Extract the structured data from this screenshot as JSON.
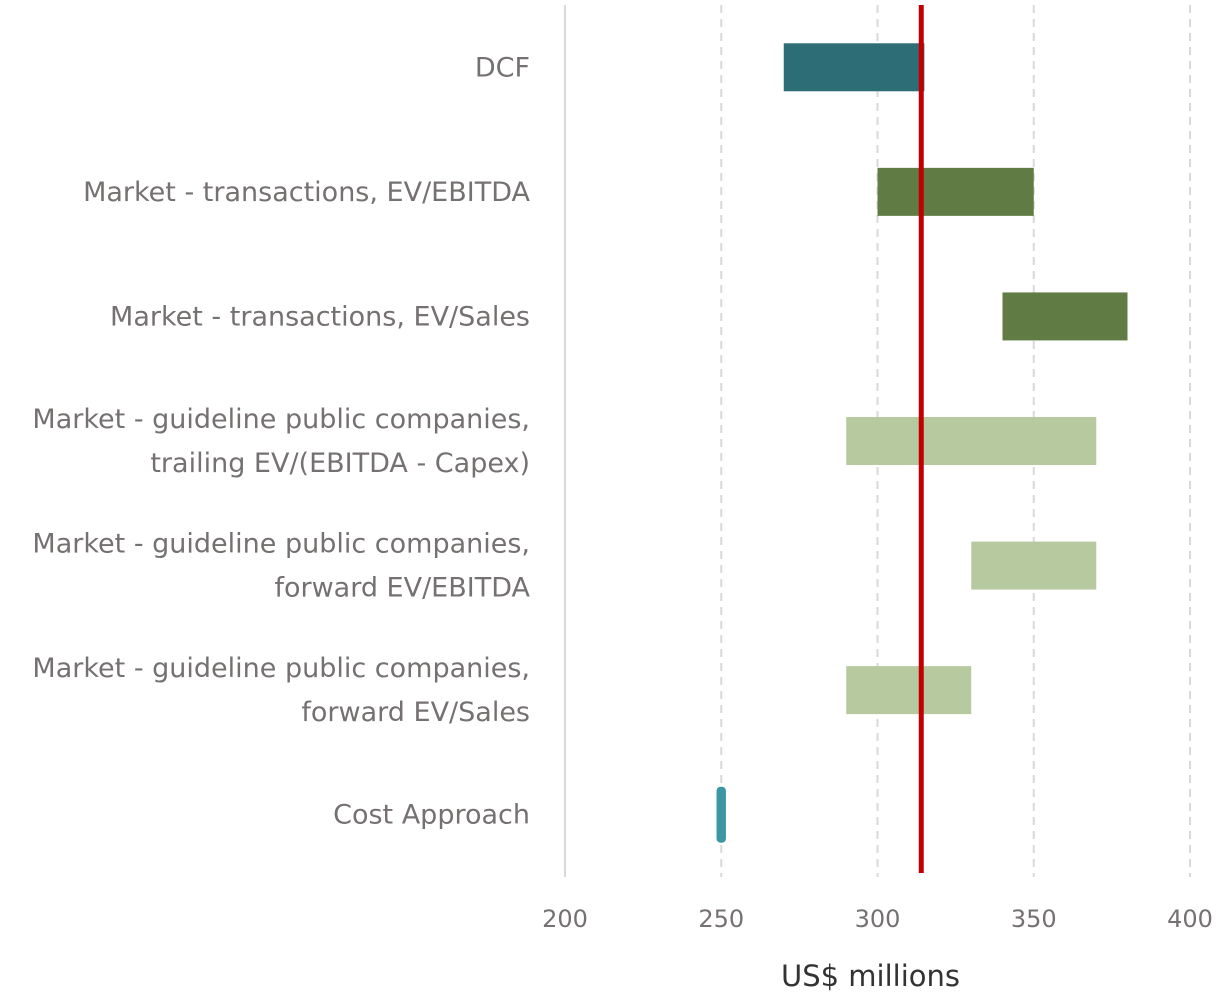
{
  "chart_data": {
    "type": "bar",
    "orientation": "horizontal-floating",
    "title": "",
    "xlabel": "US$ millions",
    "ylabel": "",
    "xlim": [
      200,
      400
    ],
    "xticks": [
      200,
      250,
      300,
      350,
      400
    ],
    "grid": "vertical dashed",
    "legend": "none",
    "categories": [
      [
        "DCF"
      ],
      [
        "Market - transactions, EV/EBITDA"
      ],
      [
        "Market - transactions, EV/Sales"
      ],
      [
        "Market - guideline public companies,",
        "trailing EV/(EBITDA - Capex)"
      ],
      [
        "Market - guideline public companies,",
        "forward EV/EBITDA"
      ],
      [
        "Market - guideline public companies,",
        "forward EV/Sales"
      ],
      [
        "Cost Approach"
      ]
    ],
    "ranges": [
      {
        "low": 270,
        "high": 315,
        "color": "#2d6e76"
      },
      {
        "low": 300,
        "high": 350,
        "color": "#617b44"
      },
      {
        "low": 340,
        "high": 380,
        "color": "#617b44"
      },
      {
        "low": 290,
        "high": 370,
        "color": "#b6c99f"
      },
      {
        "low": 330,
        "high": 370,
        "color": "#b6c99f"
      },
      {
        "low": 290,
        "high": 330,
        "color": "#b6c99f"
      },
      {
        "low": 248.5,
        "high": 251.5,
        "color": "#3a97a3"
      }
    ],
    "reference_line": {
      "value": 314,
      "color": "#c00000"
    }
  }
}
